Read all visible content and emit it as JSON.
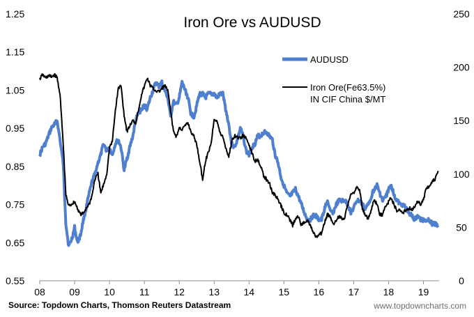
{
  "chart_data": {
    "type": "line",
    "title": "Iron Ore vs AUDUSD",
    "x_ticks": [
      "08",
      "09",
      "10",
      "11",
      "12",
      "13",
      "14",
      "15",
      "16",
      "17",
      "18",
      "19"
    ],
    "xlim": [
      2008,
      2019.45
    ],
    "y_left": {
      "lim": [
        0.55,
        1.25
      ],
      "ticks": [
        "0.55",
        "0.65",
        "0.75",
        "0.85",
        "0.95",
        "1.05",
        "1.15",
        "1.25"
      ]
    },
    "y_right": {
      "lim": [
        0,
        250
      ],
      "ticks": [
        "0",
        "50",
        "100",
        "150",
        "200",
        "250"
      ]
    },
    "legend_position": "top-right",
    "grid": false,
    "series": [
      {
        "name": "AUDUSD",
        "axis": "left",
        "color": "#4f7fcf",
        "points": [
          [
            2008.0,
            0.88
          ],
          [
            2008.08,
            0.9
          ],
          [
            2008.17,
            0.91
          ],
          [
            2008.25,
            0.93
          ],
          [
            2008.33,
            0.95
          ],
          [
            2008.42,
            0.96
          ],
          [
            2008.5,
            0.97
          ],
          [
            2008.58,
            0.92
          ],
          [
            2008.67,
            0.86
          ],
          [
            2008.75,
            0.7
          ],
          [
            2008.83,
            0.64
          ],
          [
            2008.92,
            0.66
          ],
          [
            2009.0,
            0.69
          ],
          [
            2009.08,
            0.65
          ],
          [
            2009.17,
            0.67
          ],
          [
            2009.25,
            0.71
          ],
          [
            2009.33,
            0.74
          ],
          [
            2009.42,
            0.78
          ],
          [
            2009.5,
            0.81
          ],
          [
            2009.58,
            0.83
          ],
          [
            2009.67,
            0.86
          ],
          [
            2009.75,
            0.88
          ],
          [
            2009.83,
            0.91
          ],
          [
            2009.92,
            0.89
          ],
          [
            2010.0,
            0.9
          ],
          [
            2010.08,
            0.88
          ],
          [
            2010.17,
            0.91
          ],
          [
            2010.25,
            0.92
          ],
          [
            2010.33,
            0.9
          ],
          [
            2010.42,
            0.84
          ],
          [
            2010.5,
            0.87
          ],
          [
            2010.58,
            0.9
          ],
          [
            2010.67,
            0.93
          ],
          [
            2010.75,
            0.97
          ],
          [
            2010.83,
            0.99
          ],
          [
            2010.92,
            1.0
          ],
          [
            2011.0,
            1.01
          ],
          [
            2011.08,
            1.0
          ],
          [
            2011.17,
            1.03
          ],
          [
            2011.25,
            1.05
          ],
          [
            2011.33,
            1.07
          ],
          [
            2011.42,
            1.06
          ],
          [
            2011.5,
            1.07
          ],
          [
            2011.58,
            1.05
          ],
          [
            2011.67,
            1.03
          ],
          [
            2011.75,
            0.98
          ],
          [
            2011.83,
            1.02
          ],
          [
            2011.92,
            1.01
          ],
          [
            2012.0,
            1.03
          ],
          [
            2012.08,
            1.07
          ],
          [
            2012.17,
            1.05
          ],
          [
            2012.25,
            1.03
          ],
          [
            2012.33,
            0.99
          ],
          [
            2012.42,
            0.98
          ],
          [
            2012.5,
            1.01
          ],
          [
            2012.58,
            1.04
          ],
          [
            2012.67,
            1.04
          ],
          [
            2012.75,
            1.03
          ],
          [
            2012.83,
            1.04
          ],
          [
            2012.92,
            1.04
          ],
          [
            2013.0,
            1.04
          ],
          [
            2013.08,
            1.03
          ],
          [
            2013.17,
            1.04
          ],
          [
            2013.25,
            1.04
          ],
          [
            2013.33,
            1.0
          ],
          [
            2013.42,
            0.96
          ],
          [
            2013.5,
            0.91
          ],
          [
            2013.58,
            0.9
          ],
          [
            2013.67,
            0.92
          ],
          [
            2013.75,
            0.95
          ],
          [
            2013.83,
            0.93
          ],
          [
            2013.92,
            0.89
          ],
          [
            2014.0,
            0.88
          ],
          [
            2014.08,
            0.9
          ],
          [
            2014.17,
            0.91
          ],
          [
            2014.25,
            0.93
          ],
          [
            2014.33,
            0.93
          ],
          [
            2014.42,
            0.94
          ],
          [
            2014.5,
            0.94
          ],
          [
            2014.58,
            0.93
          ],
          [
            2014.67,
            0.92
          ],
          [
            2014.75,
            0.88
          ],
          [
            2014.83,
            0.86
          ],
          [
            2014.92,
            0.82
          ],
          [
            2015.0,
            0.8
          ],
          [
            2015.08,
            0.78
          ],
          [
            2015.17,
            0.77
          ],
          [
            2015.25,
            0.78
          ],
          [
            2015.33,
            0.79
          ],
          [
            2015.42,
            0.77
          ],
          [
            2015.5,
            0.75
          ],
          [
            2015.58,
            0.73
          ],
          [
            2015.67,
            0.71
          ],
          [
            2015.75,
            0.71
          ],
          [
            2015.83,
            0.72
          ],
          [
            2015.92,
            0.72
          ],
          [
            2016.0,
            0.71
          ],
          [
            2016.08,
            0.71
          ],
          [
            2016.17,
            0.74
          ],
          [
            2016.25,
            0.76
          ],
          [
            2016.33,
            0.73
          ],
          [
            2016.42,
            0.73
          ],
          [
            2016.5,
            0.75
          ],
          [
            2016.58,
            0.76
          ],
          [
            2016.67,
            0.76
          ],
          [
            2016.75,
            0.76
          ],
          [
            2016.83,
            0.75
          ],
          [
            2016.92,
            0.73
          ],
          [
            2017.0,
            0.74
          ],
          [
            2017.08,
            0.76
          ],
          [
            2017.17,
            0.76
          ],
          [
            2017.25,
            0.75
          ],
          [
            2017.33,
            0.74
          ],
          [
            2017.42,
            0.75
          ],
          [
            2017.5,
            0.77
          ],
          [
            2017.58,
            0.79
          ],
          [
            2017.67,
            0.8
          ],
          [
            2017.75,
            0.78
          ],
          [
            2017.83,
            0.76
          ],
          [
            2017.92,
            0.77
          ],
          [
            2018.0,
            0.79
          ],
          [
            2018.08,
            0.8
          ],
          [
            2018.17,
            0.77
          ],
          [
            2018.25,
            0.76
          ],
          [
            2018.33,
            0.75
          ],
          [
            2018.42,
            0.75
          ],
          [
            2018.5,
            0.74
          ],
          [
            2018.58,
            0.73
          ],
          [
            2018.67,
            0.72
          ],
          [
            2018.75,
            0.71
          ],
          [
            2018.83,
            0.72
          ],
          [
            2018.92,
            0.71
          ],
          [
            2019.0,
            0.71
          ],
          [
            2019.08,
            0.71
          ],
          [
            2019.17,
            0.71
          ],
          [
            2019.25,
            0.7
          ],
          [
            2019.33,
            0.7
          ],
          [
            2019.42,
            0.69
          ]
        ]
      },
      {
        "name": "Iron Ore(Fe63.5%) IN CIF China $/MT",
        "axis": "right",
        "color": "#000000",
        "points": [
          [
            2008.0,
            189
          ],
          [
            2008.08,
            193
          ],
          [
            2008.17,
            190
          ],
          [
            2008.25,
            192
          ],
          [
            2008.33,
            191
          ],
          [
            2008.42,
            193
          ],
          [
            2008.5,
            190
          ],
          [
            2008.58,
            175
          ],
          [
            2008.67,
            130
          ],
          [
            2008.75,
            80
          ],
          [
            2008.83,
            70
          ],
          [
            2008.92,
            72
          ],
          [
            2009.0,
            74
          ],
          [
            2009.08,
            68
          ],
          [
            2009.17,
            62
          ],
          [
            2009.25,
            63
          ],
          [
            2009.33,
            68
          ],
          [
            2009.42,
            72
          ],
          [
            2009.5,
            80
          ],
          [
            2009.58,
            95
          ],
          [
            2009.67,
            100
          ],
          [
            2009.75,
            82
          ],
          [
            2009.83,
            90
          ],
          [
            2009.92,
            100
          ],
          [
            2010.0,
            125
          ],
          [
            2010.08,
            130
          ],
          [
            2010.17,
            160
          ],
          [
            2010.25,
            180
          ],
          [
            2010.33,
            183
          ],
          [
            2010.42,
            155
          ],
          [
            2010.5,
            140
          ],
          [
            2010.58,
            145
          ],
          [
            2010.67,
            150
          ],
          [
            2010.75,
            148
          ],
          [
            2010.83,
            160
          ],
          [
            2010.92,
            175
          ],
          [
            2011.0,
            182
          ],
          [
            2011.08,
            190
          ],
          [
            2011.17,
            183
          ],
          [
            2011.25,
            180
          ],
          [
            2011.33,
            178
          ],
          [
            2011.42,
            177
          ],
          [
            2011.5,
            180
          ],
          [
            2011.58,
            183
          ],
          [
            2011.67,
            178
          ],
          [
            2011.75,
            160
          ],
          [
            2011.83,
            140
          ],
          [
            2011.92,
            135
          ],
          [
            2012.0,
            143
          ],
          [
            2012.08,
            142
          ],
          [
            2012.17,
            145
          ],
          [
            2012.25,
            148
          ],
          [
            2012.33,
            140
          ],
          [
            2012.42,
            135
          ],
          [
            2012.5,
            128
          ],
          [
            2012.58,
            113
          ],
          [
            2012.67,
            95
          ],
          [
            2012.75,
            112
          ],
          [
            2012.83,
            120
          ],
          [
            2012.92,
            130
          ],
          [
            2013.0,
            152
          ],
          [
            2013.08,
            150
          ],
          [
            2013.17,
            138
          ],
          [
            2013.25,
            135
          ],
          [
            2013.33,
            125
          ],
          [
            2013.42,
            116
          ],
          [
            2013.5,
            130
          ],
          [
            2013.58,
            136
          ],
          [
            2013.67,
            134
          ],
          [
            2013.75,
            134
          ],
          [
            2013.83,
            136
          ],
          [
            2013.92,
            133
          ],
          [
            2014.0,
            128
          ],
          [
            2014.08,
            120
          ],
          [
            2014.17,
            112
          ],
          [
            2014.25,
            114
          ],
          [
            2014.33,
            108
          ],
          [
            2014.42,
            98
          ],
          [
            2014.5,
            95
          ],
          [
            2014.58,
            92
          ],
          [
            2014.67,
            83
          ],
          [
            2014.75,
            80
          ],
          [
            2014.83,
            76
          ],
          [
            2014.92,
            70
          ],
          [
            2015.0,
            64
          ],
          [
            2015.08,
            62
          ],
          [
            2015.17,
            57
          ],
          [
            2015.25,
            52
          ],
          [
            2015.33,
            58
          ],
          [
            2015.42,
            60
          ],
          [
            2015.5,
            52
          ],
          [
            2015.58,
            55
          ],
          [
            2015.67,
            57
          ],
          [
            2015.75,
            52
          ],
          [
            2015.83,
            46
          ],
          [
            2015.92,
            41
          ],
          [
            2016.0,
            42
          ],
          [
            2016.08,
            45
          ],
          [
            2016.17,
            55
          ],
          [
            2016.25,
            62
          ],
          [
            2016.33,
            60
          ],
          [
            2016.42,
            53
          ],
          [
            2016.5,
            57
          ],
          [
            2016.58,
            60
          ],
          [
            2016.67,
            58
          ],
          [
            2016.75,
            60
          ],
          [
            2016.83,
            72
          ],
          [
            2016.92,
            80
          ],
          [
            2017.0,
            82
          ],
          [
            2017.08,
            88
          ],
          [
            2017.17,
            85
          ],
          [
            2017.25,
            68
          ],
          [
            2017.33,
            62
          ],
          [
            2017.42,
            58
          ],
          [
            2017.5,
            66
          ],
          [
            2017.58,
            75
          ],
          [
            2017.67,
            72
          ],
          [
            2017.75,
            62
          ],
          [
            2017.83,
            62
          ],
          [
            2017.92,
            70
          ],
          [
            2018.0,
            74
          ],
          [
            2018.08,
            78
          ],
          [
            2018.17,
            70
          ],
          [
            2018.25,
            65
          ],
          [
            2018.33,
            66
          ],
          [
            2018.42,
            64
          ],
          [
            2018.5,
            66
          ],
          [
            2018.58,
            68
          ],
          [
            2018.67,
            67
          ],
          [
            2018.75,
            69
          ],
          [
            2018.83,
            74
          ],
          [
            2018.92,
            72
          ],
          [
            2019.0,
            76
          ],
          [
            2019.08,
            87
          ],
          [
            2019.17,
            89
          ],
          [
            2019.25,
            93
          ],
          [
            2019.33,
            95
          ],
          [
            2019.42,
            103
          ]
        ]
      }
    ]
  },
  "footer": {
    "source": "Source: Topdown Charts, Thomson Reuters Datastream",
    "website": "www.topdowncharts.com"
  }
}
